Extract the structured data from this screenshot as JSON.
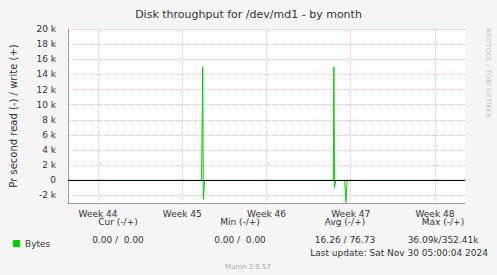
{
  "chart_data": {
    "type": "line",
    "title": "Disk throughput for /dev/md1 - by month",
    "y_label": "Pr second read (-) / write (+)",
    "side_text": "RRDTOOL / TOBI OETIKER",
    "x": [
      0,
      11.1,
      11.2,
      11.25,
      11.35,
      22.05,
      22.1,
      22.15,
      22.25,
      23.0,
      23.1,
      23.2,
      33
    ],
    "series": [
      {
        "name": "Bytes",
        "color": "#00cc00",
        "values": [
          0,
          0,
          15000,
          -2500,
          0,
          0,
          15000,
          -1000,
          0,
          0,
          -2900,
          0,
          0
        ]
      }
    ],
    "xlim": [
      0,
      33
    ],
    "xticks": [
      {
        "value": 2.5,
        "label": "Week 44"
      },
      {
        "value": 9.5,
        "label": "Week 45"
      },
      {
        "value": 16.5,
        "label": "Week 46"
      },
      {
        "value": 23.5,
        "label": "Week 47"
      },
      {
        "value": 30.5,
        "label": "Week 48"
      }
    ],
    "ylim": [
      -3000,
      20000
    ],
    "yticks": [
      {
        "value": -2000,
        "label": "-2 k"
      },
      0,
      {
        "value": 2000,
        "label": "2 k"
      },
      {
        "value": 4000,
        "label": "4 k"
      },
      {
        "value": 6000,
        "label": "6 k"
      },
      {
        "value": 8000,
        "label": "8 k"
      },
      {
        "value": 10000,
        "label": "10 k"
      },
      {
        "value": 12000,
        "label": "12 k"
      },
      {
        "value": 14000,
        "label": "14 k"
      },
      {
        "value": 16000,
        "label": "16 k"
      },
      {
        "value": 18000,
        "label": "18 k"
      },
      {
        "value": 20000,
        "label": "20 k"
      }
    ],
    "grid": true,
    "legend": "bottom left"
  },
  "stats_table": {
    "headers": [
      "Cur (-/+)",
      "Min (-/+)",
      "Avg (-/+)",
      "Max (-/+)"
    ],
    "rows": [
      {
        "cells": [
          "0.00 /  0.00",
          "0.00 /  0.00",
          "16.26 / 76.73",
          "36.09k/352.41k"
        ]
      }
    ]
  },
  "last_update": "Last update: Sat Nov 30 05:00:04 2024",
  "footer": "Munin 2.0.57"
}
